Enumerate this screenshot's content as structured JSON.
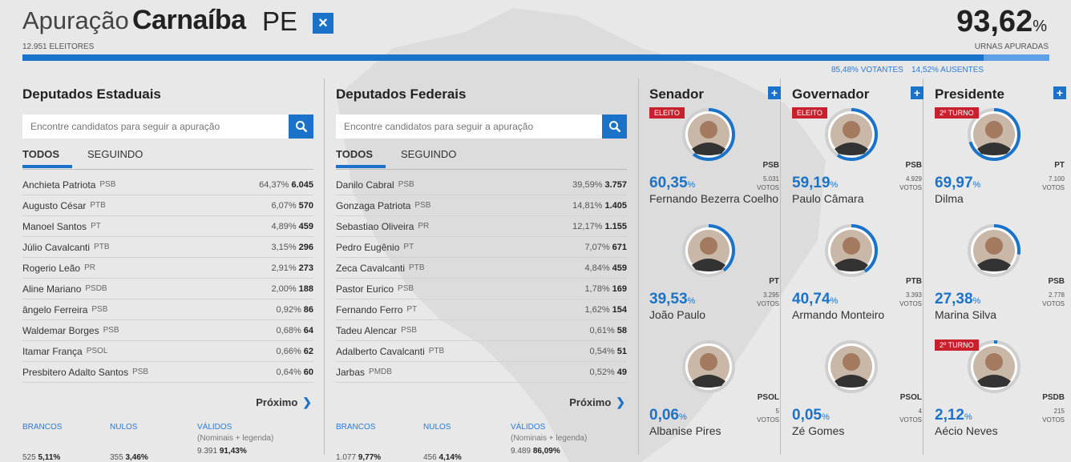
{
  "header": {
    "prefix": "Apuração",
    "city": "Carnaíba",
    "state": "PE",
    "close_icon": "×",
    "electors": "12.951 ELEITORES",
    "urnas_pct": "93,62",
    "pct_symbol": "%",
    "urnas_label": "URNAS APURADAS",
    "urnas_fraction": 0.9362,
    "votantes": "85,48% VOTANTES",
    "ausentes": "14,52% AUSENTES"
  },
  "colors": {
    "accent": "#1a73c9",
    "elected_tag": "#c8202d"
  },
  "search_placeholder": "Encontre candidatos para seguir a apuração",
  "tabs": {
    "all": "TODOS",
    "following": "SEGUINDO"
  },
  "next_label": "Próximo",
  "totals_labels": {
    "brancos": "BRANCOS",
    "nulos": "NULOS",
    "validos": "VÁLIDOS",
    "validos_sub": "(Nominais + legenda)"
  },
  "estaduais": {
    "title": "Deputados Estaduais",
    "rows": [
      {
        "name": "Anchieta Patriota",
        "party": "PSB",
        "pct": "64,37%",
        "votes": "6.045"
      },
      {
        "name": "Augusto César",
        "party": "PTB",
        "pct": "6,07%",
        "votes": "570"
      },
      {
        "name": "Manoel Santos",
        "party": "PT",
        "pct": "4,89%",
        "votes": "459"
      },
      {
        "name": "Júlio Cavalcanti",
        "party": "PTB",
        "pct": "3,15%",
        "votes": "296"
      },
      {
        "name": "Rogerio Leão",
        "party": "PR",
        "pct": "2,91%",
        "votes": "273"
      },
      {
        "name": "Aline Mariano",
        "party": "PSDB",
        "pct": "2,00%",
        "votes": "188"
      },
      {
        "name": "ângelo Ferreira",
        "party": "PSB",
        "pct": "0,92%",
        "votes": "86"
      },
      {
        "name": "Waldemar Borges",
        "party": "PSB",
        "pct": "0,68%",
        "votes": "64"
      },
      {
        "name": "Itamar França",
        "party": "PSOL",
        "pct": "0,66%",
        "votes": "62"
      },
      {
        "name": "Presbitero Adalto Santos",
        "party": "PSB",
        "pct": "0,64%",
        "votes": "60"
      }
    ],
    "totals": {
      "brancos_num": "525",
      "brancos_pct": "5,11%",
      "nulos_num": "355",
      "nulos_pct": "3,46%",
      "validos_num": "9.391",
      "validos_pct": "91,43%"
    }
  },
  "federais": {
    "title": "Deputados Federais",
    "rows": [
      {
        "name": "Danilo Cabral",
        "party": "PSB",
        "pct": "39,59%",
        "votes": "3.757"
      },
      {
        "name": "Gonzaga Patriota",
        "party": "PSB",
        "pct": "14,81%",
        "votes": "1.405"
      },
      {
        "name": "Sebastiao Oliveira",
        "party": "PR",
        "pct": "12,17%",
        "votes": "1.155"
      },
      {
        "name": "Pedro Eugênio",
        "party": "PT",
        "pct": "7,07%",
        "votes": "671"
      },
      {
        "name": "Zeca Cavalcanti",
        "party": "PTB",
        "pct": "4,84%",
        "votes": "459"
      },
      {
        "name": "Pastor Eurico",
        "party": "PSB",
        "pct": "1,78%",
        "votes": "169"
      },
      {
        "name": "Fernando Ferro",
        "party": "PT",
        "pct": "1,62%",
        "votes": "154"
      },
      {
        "name": "Tadeu Alencar",
        "party": "PSB",
        "pct": "0,61%",
        "votes": "58"
      },
      {
        "name": "Adalberto Cavalcanti",
        "party": "PTB",
        "pct": "0,54%",
        "votes": "51"
      },
      {
        "name": "Jarbas",
        "party": "PMDB",
        "pct": "0,52%",
        "votes": "49"
      }
    ],
    "totals": {
      "brancos_num": "1.077",
      "brancos_pct": "9,77%",
      "nulos_num": "456",
      "nulos_pct": "4,14%",
      "validos_num": "9.489",
      "validos_pct": "86,09%"
    }
  },
  "votos_label": "VOTOS",
  "senador": {
    "title": "Senador",
    "candidates": [
      {
        "tag": "ELEITO",
        "pct": "60,35",
        "party": "PSB",
        "votes": "5.031",
        "name": "Fernando Bezerra Coelho",
        "share": 0.6035
      },
      {
        "tag": "",
        "pct": "39,53",
        "party": "PT",
        "votes": "3.295",
        "name": "João Paulo",
        "share": 0.3953
      },
      {
        "tag": "",
        "pct": "0,06",
        "party": "PSOL",
        "votes": "5",
        "name": "Albanise Pires",
        "share": 0.0006
      }
    ]
  },
  "governador": {
    "title": "Governador",
    "candidates": [
      {
        "tag": "ELEITO",
        "pct": "59,19",
        "party": "PSB",
        "votes": "4.929",
        "name": "Paulo Câmara",
        "share": 0.5919
      },
      {
        "tag": "",
        "pct": "40,74",
        "party": "PTB",
        "votes": "3.393",
        "name": "Armando Monteiro",
        "share": 0.4074
      },
      {
        "tag": "",
        "pct": "0,05",
        "party": "PSOL",
        "votes": "4",
        "name": "Zé Gomes",
        "share": 0.0005
      }
    ]
  },
  "presidente": {
    "title": "Presidente",
    "candidates": [
      {
        "tag": "2º TURNO",
        "pct": "69,97",
        "party": "PT",
        "votes": "7.100",
        "name": "Dilma",
        "share": 0.6997
      },
      {
        "tag": "",
        "pct": "27,38",
        "party": "PSB",
        "votes": "2.778",
        "name": "Marina Silva",
        "share": 0.2738
      },
      {
        "tag": "2º TURNO",
        "pct": "2,12",
        "party": "PSDB",
        "votes": "215",
        "name": "Aécio Neves",
        "share": 0.0212
      }
    ]
  }
}
